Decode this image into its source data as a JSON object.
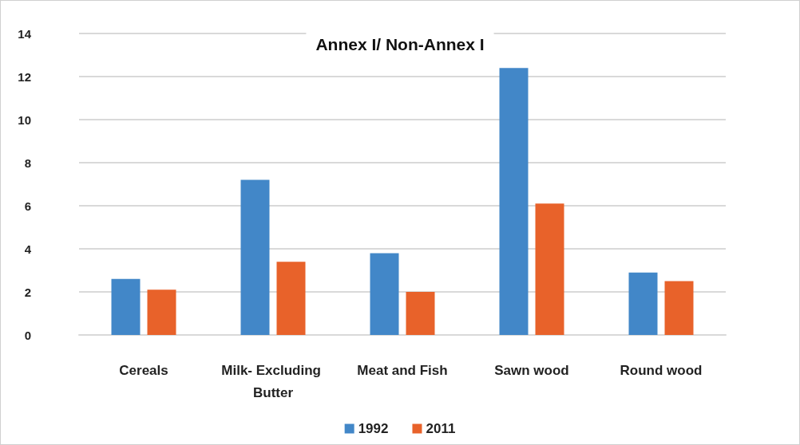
{
  "chart_data": {
    "type": "bar",
    "title": "Annex I/ Non-Annex I",
    "categories": [
      "Cereals",
      "Milk- Excluding Butter",
      "Meat and Fish",
      "Sawn wood",
      "Round wood"
    ],
    "series": [
      {
        "name": "1992",
        "color": "#4287c8",
        "values": [
          2.6,
          7.2,
          3.8,
          12.4,
          2.9
        ]
      },
      {
        "name": "2011",
        "color": "#e8622a",
        "values": [
          2.1,
          3.4,
          2.0,
          6.1,
          2.5
        ]
      }
    ],
    "ylim": [
      0,
      14
    ],
    "yticks": [
      0,
      2,
      4,
      6,
      8,
      10,
      12,
      14
    ],
    "grid": "y",
    "legend": "bottom"
  }
}
